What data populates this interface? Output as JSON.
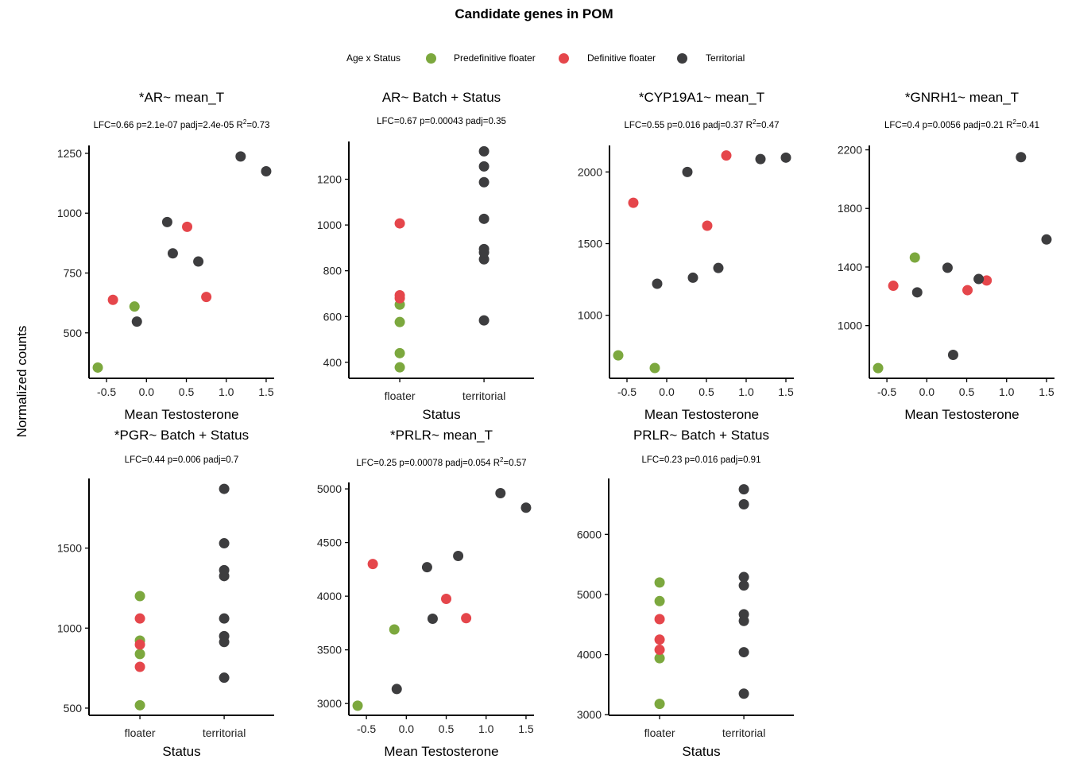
{
  "figure": {
    "title": "Candidate genes in POM",
    "shared_ylabel": "Normalized counts"
  },
  "legend": {
    "title": "Age x Status",
    "entries": [
      {
        "key": "pre",
        "label": "Predefinitive floater",
        "color": "#7ca83e"
      },
      {
        "key": "def",
        "label": "Definitive floater",
        "color": "#e5464b"
      },
      {
        "key": "ter",
        "label": "Territorial",
        "color": "#3d3d3f"
      }
    ]
  },
  "chart_data": [
    {
      "type": "scatter",
      "title": "*AR~ mean_T",
      "subtitle": "LFC=0.66 p=2.1e-07 padj=2.4e-05 R^2=0.73",
      "xlabel": "Mean Testosterone",
      "ylabel": "Normalized counts",
      "x_kind": "numeric",
      "xlim": [
        -0.72,
        1.6
      ],
      "xticks": [
        -0.5,
        0.0,
        0.5,
        1.0,
        1.5
      ],
      "xtick_labels": [
        "-0.5",
        "0.0",
        "0.5",
        "1.0",
        "1.5"
      ],
      "ylim": [
        310,
        1283
      ],
      "yticks": [
        500,
        750,
        1000,
        1250
      ],
      "points": [
        {
          "group": "pre",
          "x": -0.61,
          "y": 355
        },
        {
          "group": "pre",
          "x": -0.15,
          "y": 610
        },
        {
          "group": "def",
          "x": -0.42,
          "y": 638
        },
        {
          "group": "def",
          "x": 0.51,
          "y": 943
        },
        {
          "group": "def",
          "x": 0.75,
          "y": 650
        },
        {
          "group": "ter",
          "x": -0.12,
          "y": 547
        },
        {
          "group": "ter",
          "x": 0.26,
          "y": 963
        },
        {
          "group": "ter",
          "x": 0.33,
          "y": 832
        },
        {
          "group": "ter",
          "x": 0.65,
          "y": 798
        },
        {
          "group": "ter",
          "x": 1.18,
          "y": 1237
        },
        {
          "group": "ter",
          "x": 1.5,
          "y": 1175
        }
      ]
    },
    {
      "type": "scatter",
      "title": "AR~ Batch + Status",
      "subtitle": "LFC=0.67 p=0.00043 padj=0.35",
      "xlabel": "Status",
      "ylabel": "Normalized counts",
      "x_kind": "categorical",
      "categories": [
        "floater",
        "territorial"
      ],
      "ylim": [
        330,
        1365
      ],
      "yticks": [
        400,
        600,
        800,
        1000,
        1200
      ],
      "points": [
        {
          "group": "pre",
          "x": "floater",
          "y": 378
        },
        {
          "group": "pre",
          "x": "floater",
          "y": 440
        },
        {
          "group": "pre",
          "x": "floater",
          "y": 576
        },
        {
          "group": "pre",
          "x": "floater",
          "y": 652
        },
        {
          "group": "def",
          "x": "floater",
          "y": 680
        },
        {
          "group": "def",
          "x": "floater",
          "y": 693
        },
        {
          "group": "def",
          "x": "floater",
          "y": 1007
        },
        {
          "group": "ter",
          "x": "territorial",
          "y": 583
        },
        {
          "group": "ter",
          "x": "territorial",
          "y": 850
        },
        {
          "group": "ter",
          "x": "territorial",
          "y": 880
        },
        {
          "group": "ter",
          "x": "territorial",
          "y": 895
        },
        {
          "group": "ter",
          "x": "territorial",
          "y": 1027
        },
        {
          "group": "ter",
          "x": "territorial",
          "y": 1187
        },
        {
          "group": "ter",
          "x": "territorial",
          "y": 1256
        },
        {
          "group": "ter",
          "x": "territorial",
          "y": 1322
        }
      ]
    },
    {
      "type": "scatter",
      "title": "*CYP19A1~ mean_T",
      "subtitle": "LFC=0.55 p=0.016 padj=0.37 R^2=0.47",
      "xlabel": "Mean Testosterone",
      "ylabel": "Normalized counts",
      "x_kind": "numeric",
      "xlim": [
        -0.72,
        1.6
      ],
      "xticks": [
        -0.5,
        0.0,
        0.5,
        1.0,
        1.5
      ],
      "xtick_labels": [
        "-0.5",
        "0.0",
        "0.5",
        "1.0",
        "1.5"
      ],
      "ylim": [
        560,
        2185
      ],
      "yticks": [
        1000,
        1500,
        2000
      ],
      "points": [
        {
          "group": "pre",
          "x": -0.61,
          "y": 720
        },
        {
          "group": "pre",
          "x": -0.15,
          "y": 632
        },
        {
          "group": "def",
          "x": -0.42,
          "y": 1785
        },
        {
          "group": "def",
          "x": 0.51,
          "y": 1625
        },
        {
          "group": "def",
          "x": 0.75,
          "y": 2115
        },
        {
          "group": "ter",
          "x": -0.12,
          "y": 1220
        },
        {
          "group": "ter",
          "x": 0.26,
          "y": 2000
        },
        {
          "group": "ter",
          "x": 0.33,
          "y": 1262
        },
        {
          "group": "ter",
          "x": 0.65,
          "y": 1330
        },
        {
          "group": "ter",
          "x": 1.18,
          "y": 2090
        },
        {
          "group": "ter",
          "x": 1.5,
          "y": 2100
        }
      ]
    },
    {
      "type": "scatter",
      "title": "*GNRH1~ mean_T",
      "subtitle": "LFC=0.4 p=0.0056 padj=0.21 R^2=0.41",
      "xlabel": "Mean Testosterone",
      "ylabel": "Normalized counts",
      "x_kind": "numeric",
      "xlim": [
        -0.72,
        1.6
      ],
      "xticks": [
        -0.5,
        0.0,
        0.5,
        1.0,
        1.5
      ],
      "xtick_labels": [
        "-0.5",
        "0.0",
        "0.5",
        "1.0",
        "1.5"
      ],
      "ylim": [
        640,
        2230
      ],
      "yticks": [
        1000,
        1400,
        1800,
        2200
      ],
      "points": [
        {
          "group": "pre",
          "x": -0.61,
          "y": 710
        },
        {
          "group": "pre",
          "x": -0.15,
          "y": 1465
        },
        {
          "group": "def",
          "x": -0.42,
          "y": 1272
        },
        {
          "group": "def",
          "x": 0.51,
          "y": 1242
        },
        {
          "group": "def",
          "x": 0.75,
          "y": 1308
        },
        {
          "group": "ter",
          "x": -0.12,
          "y": 1227
        },
        {
          "group": "ter",
          "x": 0.26,
          "y": 1395
        },
        {
          "group": "ter",
          "x": 0.33,
          "y": 800
        },
        {
          "group": "ter",
          "x": 0.65,
          "y": 1318
        },
        {
          "group": "ter",
          "x": 1.18,
          "y": 2150
        },
        {
          "group": "ter",
          "x": 1.5,
          "y": 1588
        }
      ]
    },
    {
      "type": "scatter",
      "title": "*PGR~ Batch + Status",
      "subtitle": "LFC=0.44 p=0.006 padj=0.7",
      "xlabel": "Status",
      "ylabel": "Normalized counts",
      "x_kind": "categorical",
      "categories": [
        "floater",
        "territorial"
      ],
      "ylim": [
        455,
        1935
      ],
      "yticks": [
        500,
        1000,
        1500
      ],
      "points": [
        {
          "group": "pre",
          "x": "floater",
          "y": 518
        },
        {
          "group": "pre",
          "x": "floater",
          "y": 838
        },
        {
          "group": "pre",
          "x": "floater",
          "y": 922
        },
        {
          "group": "pre",
          "x": "floater",
          "y": 1200
        },
        {
          "group": "def",
          "x": "floater",
          "y": 758
        },
        {
          "group": "def",
          "x": "floater",
          "y": 897
        },
        {
          "group": "def",
          "x": "floater",
          "y": 1060
        },
        {
          "group": "ter",
          "x": "territorial",
          "y": 690
        },
        {
          "group": "ter",
          "x": "territorial",
          "y": 913
        },
        {
          "group": "ter",
          "x": "territorial",
          "y": 950
        },
        {
          "group": "ter",
          "x": "territorial",
          "y": 1060
        },
        {
          "group": "ter",
          "x": "territorial",
          "y": 1325
        },
        {
          "group": "ter",
          "x": "territorial",
          "y": 1362
        },
        {
          "group": "ter",
          "x": "territorial",
          "y": 1530
        },
        {
          "group": "ter",
          "x": "territorial",
          "y": 1870
        }
      ]
    },
    {
      "type": "scatter",
      "title": "*PRLR~ mean_T",
      "subtitle": "LFC=0.25 p=0.00078 padj=0.054 R^2=0.57",
      "xlabel": "Mean Testosterone",
      "ylabel": "Normalized counts",
      "x_kind": "numeric",
      "xlim": [
        -0.72,
        1.6
      ],
      "xticks": [
        -0.5,
        0.0,
        0.5,
        1.0,
        1.5
      ],
      "xtick_labels": [
        "-0.5",
        "0.0",
        "0.5",
        "1.0",
        "1.5"
      ],
      "ylim": [
        2890,
        5060
      ],
      "yticks": [
        3000,
        3500,
        4000,
        4500,
        5000
      ],
      "points": [
        {
          "group": "pre",
          "x": -0.61,
          "y": 2980
        },
        {
          "group": "pre",
          "x": -0.15,
          "y": 3690
        },
        {
          "group": "def",
          "x": -0.42,
          "y": 4300
        },
        {
          "group": "def",
          "x": 0.5,
          "y": 3975
        },
        {
          "group": "def",
          "x": 0.75,
          "y": 3795
        },
        {
          "group": "ter",
          "x": -0.12,
          "y": 3135
        },
        {
          "group": "ter",
          "x": 0.26,
          "y": 4270
        },
        {
          "group": "ter",
          "x": 0.33,
          "y": 3790
        },
        {
          "group": "ter",
          "x": 0.65,
          "y": 4375
        },
        {
          "group": "ter",
          "x": 1.18,
          "y": 4960
        },
        {
          "group": "ter",
          "x": 1.5,
          "y": 4825
        }
      ]
    },
    {
      "type": "scatter",
      "title": "PRLR~ Batch + Status",
      "subtitle": "LFC=0.23 p=0.016 padj=0.91",
      "xlabel": "Status",
      "ylabel": "Normalized counts",
      "x_kind": "categorical",
      "categories": [
        "floater",
        "territorial"
      ],
      "ylim": [
        2990,
        6930
      ],
      "yticks": [
        3000,
        4000,
        5000,
        6000
      ],
      "points": [
        {
          "group": "pre",
          "x": "floater",
          "y": 3180
        },
        {
          "group": "pre",
          "x": "floater",
          "y": 3940
        },
        {
          "group": "pre",
          "x": "floater",
          "y": 4890
        },
        {
          "group": "pre",
          "x": "floater",
          "y": 5200
        },
        {
          "group": "def",
          "x": "floater",
          "y": 4080
        },
        {
          "group": "def",
          "x": "floater",
          "y": 4250
        },
        {
          "group": "def",
          "x": "floater",
          "y": 4590
        },
        {
          "group": "ter",
          "x": "territorial",
          "y": 3350
        },
        {
          "group": "ter",
          "x": "territorial",
          "y": 4040
        },
        {
          "group": "ter",
          "x": "territorial",
          "y": 4560
        },
        {
          "group": "ter",
          "x": "territorial",
          "y": 4670
        },
        {
          "group": "ter",
          "x": "territorial",
          "y": 5150
        },
        {
          "group": "ter",
          "x": "territorial",
          "y": 5290
        },
        {
          "group": "ter",
          "x": "territorial",
          "y": 6500
        },
        {
          "group": "ter",
          "x": "territorial",
          "y": 6750
        }
      ]
    }
  ]
}
